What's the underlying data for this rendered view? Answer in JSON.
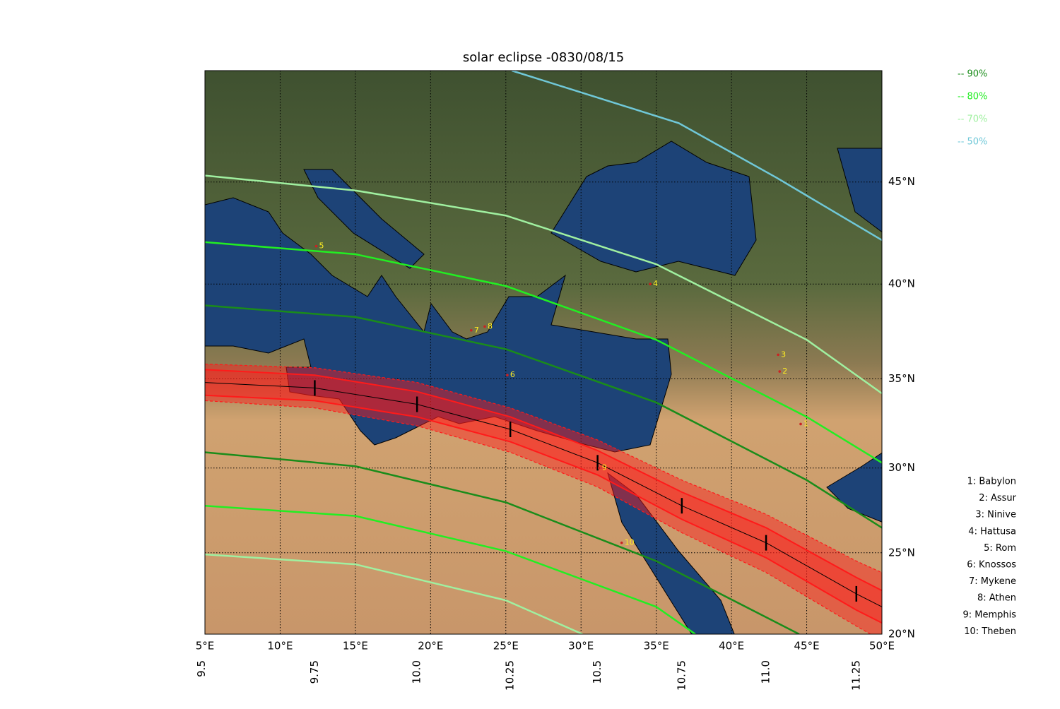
{
  "chart_data": {
    "type": "map",
    "title": "solar eclipse -0830/08/15",
    "projection": "mercator",
    "grid": true,
    "xlim": [
      5,
      50
    ],
    "ylim": [
      20,
      50
    ],
    "xticks": [
      {
        "value": 5,
        "label": "5°E"
      },
      {
        "value": 10,
        "label": "10°E"
      },
      {
        "value": 15,
        "label": "15°E"
      },
      {
        "value": 20,
        "label": "20°E"
      },
      {
        "value": 25,
        "label": "25°E"
      },
      {
        "value": 30,
        "label": "30°E"
      },
      {
        "value": 35,
        "label": "35°E"
      },
      {
        "value": 40,
        "label": "40°E"
      },
      {
        "value": 45,
        "label": "45°E"
      },
      {
        "value": 50,
        "label": "50°E"
      }
    ],
    "yticks": [
      {
        "value": 20,
        "label": "20°N"
      },
      {
        "value": 25,
        "label": "25°N"
      },
      {
        "value": 30,
        "label": "30°N"
      },
      {
        "value": 35,
        "label": "35°N"
      },
      {
        "value": 40,
        "label": "40°N"
      },
      {
        "value": 45,
        "label": "45°N"
      }
    ],
    "series": [
      {
        "name": "-- 90%",
        "color": "#1a8c1a",
        "north": {
          "lon": [
            5,
            15,
            25,
            35,
            45,
            50
          ],
          "lat": [
            38.9,
            38.3,
            36.6,
            33.7,
            29.3,
            26.5
          ]
        },
        "south": {
          "lon": [
            5,
            15,
            25,
            35,
            44.5
          ],
          "lat": [
            30.9,
            30.1,
            28.0,
            24.5,
            20
          ]
        }
      },
      {
        "name": "-- 80%",
        "color": "#22ee22",
        "north": {
          "lon": [
            5,
            15,
            25,
            35,
            45,
            50
          ],
          "lat": [
            42.1,
            41.5,
            39.9,
            37.1,
            32.9,
            30.3
          ]
        },
        "south": {
          "lon": [
            5,
            15,
            25,
            35,
            37.6
          ],
          "lat": [
            27.8,
            27.2,
            25.1,
            21.7,
            20
          ]
        }
      },
      {
        "name": "-- 70%",
        "color": "#a0f0a0",
        "north": {
          "lon": [
            5,
            15,
            25,
            35,
            45,
            50
          ],
          "lat": [
            45.3,
            44.6,
            43.4,
            41.0,
            37.1,
            34.2
          ]
        },
        "south": {
          "lon": [
            5,
            15,
            25,
            30.1
          ],
          "lat": [
            24.9,
            24.3,
            22.1,
            20
          ]
        }
      },
      {
        "name": "-- 50%",
        "color": "#70c8d8",
        "north": {
          "lon": [
            25.4,
            36.5,
            43.0,
            50
          ],
          "lat": [
            50,
            47.7,
            45.2,
            42.2
          ]
        }
      }
    ],
    "eclipse_path": {
      "color": "#ff1a1a",
      "lon": [
        5,
        12.3,
        19.1,
        25.3,
        31.1,
        36.7,
        42.3,
        48.3,
        50
      ],
      "center": [
        34.8,
        34.5,
        33.6,
        32.2,
        30.3,
        27.8,
        25.6,
        22.5,
        21.7
      ],
      "north_limit": [
        35.5,
        35.2,
        34.3,
        32.9,
        31.0,
        28.6,
        26.5,
        23.5,
        22.7
      ],
      "south_limit": [
        34.1,
        33.8,
        32.9,
        31.5,
        29.6,
        27.0,
        24.7,
        21.5,
        20.7
      ],
      "north_outer": [
        35.8,
        35.6,
        34.8,
        33.4,
        31.6,
        29.3,
        27.3,
        24.5,
        23.8
      ],
      "south_outer": [
        33.8,
        33.4,
        32.4,
        30.9,
        28.9,
        26.2,
        23.8,
        20.5,
        19.6
      ]
    },
    "time_ticks": [
      9.5,
      9.75,
      {
        "value": 10.0,
        "label": "10.0"
      },
      10.25,
      10.5,
      10.75,
      {
        "value": 11.0,
        "label": "11.0"
      },
      11.25
    ],
    "time_tick_lon": [
      4.8,
      12.3,
      19.1,
      25.3,
      31.1,
      36.7,
      42.3,
      48.3
    ],
    "time_tick_lat": [
      34.8,
      34.5,
      33.6,
      32.2,
      30.3,
      27.8,
      25.6,
      22.5
    ],
    "cities": [
      {
        "number": 1,
        "label": "1: Babylon",
        "lon": 44.6,
        "lat": 32.5
      },
      {
        "number": 2,
        "label": "2: Assur",
        "lon": 43.2,
        "lat": 35.4
      },
      {
        "number": 3,
        "label": "3: Ninive",
        "lon": 43.1,
        "lat": 36.3
      },
      {
        "number": 4,
        "label": "4: Hattusa",
        "lon": 34.6,
        "lat": 40.0
      },
      {
        "number": 5,
        "label": "5: Rom",
        "lon": 12.4,
        "lat": 41.9
      },
      {
        "number": 6,
        "label": "6: Knossos",
        "lon": 25.1,
        "lat": 35.2
      },
      {
        "number": 7,
        "label": "7: Mykene",
        "lon": 22.7,
        "lat": 37.6
      },
      {
        "number": 8,
        "label": "8: Athen",
        "lon": 23.6,
        "lat": 37.8
      },
      {
        "number": 9,
        "label": "9: Memphis",
        "lon": 31.2,
        "lat": 30.0
      },
      {
        "number": 10,
        "label": "10: Theben",
        "lon": 32.7,
        "lat": 25.6
      }
    ],
    "city_color": "#ffee22"
  }
}
